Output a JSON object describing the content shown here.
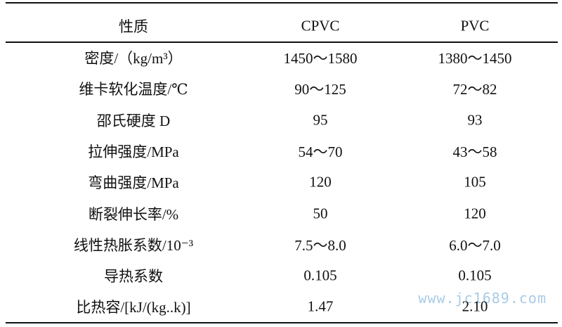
{
  "table": {
    "header": [
      "性质",
      "CPVC",
      "PVC"
    ],
    "rows": [
      [
        "密度/（kg/m³）",
        "1450～1580",
        "1380～1450"
      ],
      [
        "维卡软化温度/℃",
        "90～125",
        "72～82"
      ],
      [
        "邵氏硬度 D",
        "95",
        "93"
      ],
      [
        "拉伸强度/MPa",
        "54～70",
        "43～58"
      ],
      [
        "弯曲强度/MPa",
        "120",
        "105"
      ],
      [
        "断裂伸长率/%",
        "50",
        "120"
      ],
      [
        "线性热胀系数/10⁻³",
        "7.5～8.0",
        "6.0～7.0"
      ],
      [
        "导热系数",
        "0.105",
        "0.105"
      ],
      [
        "比热容/[kJ/(kg..k)]",
        "1.47",
        "2.10"
      ]
    ]
  },
  "watermark": "www.jc1689.com"
}
